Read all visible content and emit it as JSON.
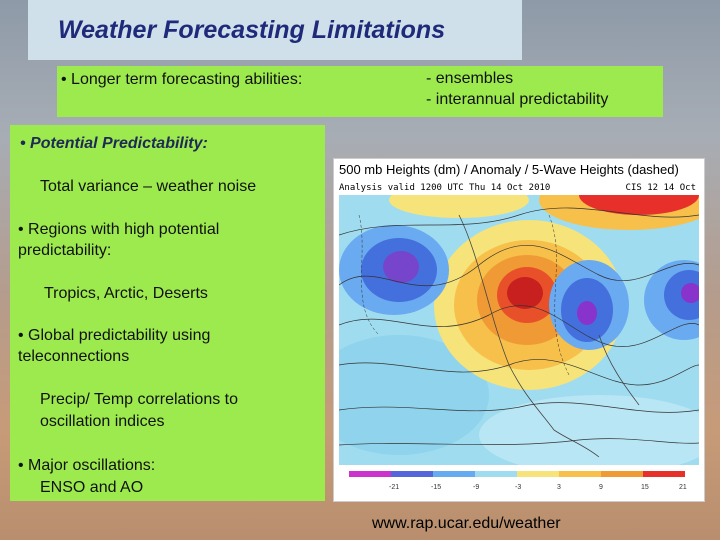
{
  "title": "Weather Forecasting Limitations",
  "top_box": {
    "left": "• Longer term forecasting abilities:",
    "right_lines": [
      "- ensembles",
      "- interannual predictability"
    ]
  },
  "main_box": {
    "potential": "• Potential Predictability:",
    "variance": "Total variance – weather noise",
    "regions_1": "• Regions with high potential",
    "regions_2": "predictability:",
    "regions_list": "Tropics, Arctic, Deserts",
    "global_1": "• Global predictability using",
    "global_2": "teleconnections",
    "precip_1": "Precip/ Temp correlations to",
    "precip_2": "oscillation indices",
    "major": "• Major oscillations:",
    "major_list": "ENSO and AO"
  },
  "map": {
    "title": "500 mb Heights (dm) / Anomaly / 5-Wave Heights (dashed)",
    "subtitle": "Analysis valid 1200 UTC Thu 14 Oct 2010",
    "subtitle_right": "CIS 12 14 Oct",
    "scale_ticks": [
      "-21",
      "-15",
      "-9",
      "-3",
      "3",
      "9",
      "15",
      "21"
    ]
  },
  "credit": "www.rap.ucar.edu/weather"
}
